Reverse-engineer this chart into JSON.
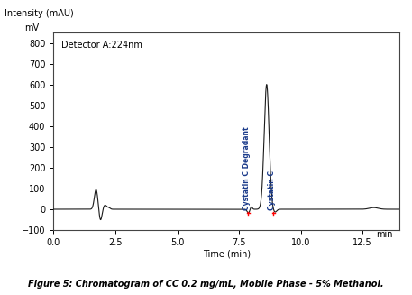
{
  "title_ylabel1": "Intensity (mAU)",
  "title_ylabel2": "mV",
  "xlabel": "Time (min)",
  "detector_label": "Detector A:224nm",
  "xlim": [
    0.0,
    14.0
  ],
  "ylim": [
    -100,
    850
  ],
  "yticks": [
    -100,
    0,
    100,
    200,
    300,
    400,
    500,
    600,
    700,
    800
  ],
  "xticks": [
    0.0,
    2.5,
    5.0,
    7.5,
    10.0,
    12.5
  ],
  "xtick_labels": [
    "0.0",
    "2.5",
    "5.0",
    "7.5",
    "10.0",
    "12.5"
  ],
  "peak1_label": "Cystatin C Degradant",
  "peak2_label": "Cystatin C",
  "figure_caption": "Figure 5: Chromatogram of CC 0.2 mg/mL, Mobile Phase - 5% Methanol.",
  "line_color": "#1a1a1a",
  "red_marker_color": "#ff0000",
  "bg_color": "#ffffff",
  "label_color": "#1a3a8a"
}
